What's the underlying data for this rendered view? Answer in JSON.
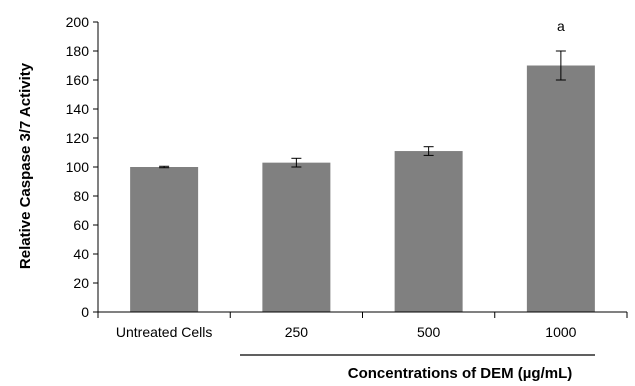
{
  "chart_data": {
    "type": "bar",
    "categories": [
      "Untreated Cells",
      "250",
      "500",
      "1000"
    ],
    "values": [
      100,
      103,
      111,
      170
    ],
    "errors": [
      0.5,
      3,
      3,
      10
    ],
    "annotations": [
      "",
      "",
      "",
      "a"
    ],
    "ylabel": "Relative Caspase 3/7 Activity",
    "xlabel": "Concentrations of DEM (µg/mL)",
    "ylim": [
      0,
      200
    ],
    "yticks": [
      0,
      20,
      40,
      60,
      80,
      100,
      120,
      140,
      160,
      180,
      200
    ],
    "grid": false,
    "colors": {
      "bar": "#808080",
      "axis": "#000000"
    }
  }
}
